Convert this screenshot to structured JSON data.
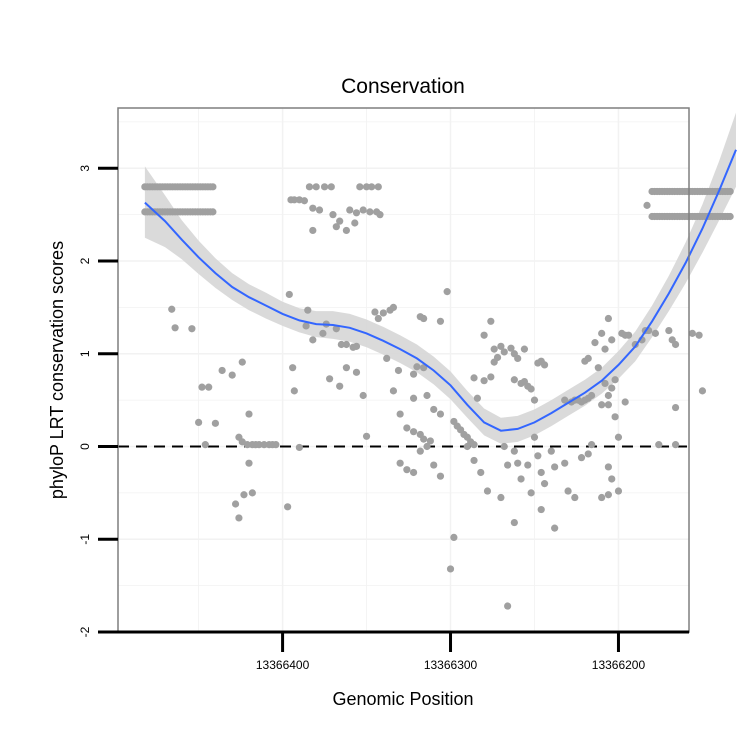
{
  "chart_data": {
    "type": "scatter",
    "title": "Conservation",
    "xlabel": "Genomic Position",
    "ylabel": "phyloP LRT conservation scores",
    "x_axis_reversed": true,
    "xlim": [
      13366158,
      13366498
    ],
    "ylim": [
      -2,
      3.65
    ],
    "x_ticks": [
      13366400,
      13366300,
      13366200
    ],
    "y_ticks": [
      -2,
      -1,
      0,
      1,
      2,
      3
    ],
    "reference_line_y": 0,
    "grid": true,
    "colors": {
      "points": "#a0a0a0",
      "smooth_line": "#3366ff",
      "confidence_band": "#d6d6d6",
      "panel_border": "#7f7f7f",
      "gridline": "#f2f2f2",
      "axis": "#000000"
    },
    "smooth": [
      {
        "x": 13366482,
        "y": 2.63,
        "lo": 2.25,
        "hi": 3.02
      },
      {
        "x": 13366470,
        "y": 2.43,
        "lo": 2.15,
        "hi": 2.71
      },
      {
        "x": 13366460,
        "y": 2.23,
        "lo": 2.02,
        "hi": 2.44
      },
      {
        "x": 13366450,
        "y": 2.04,
        "lo": 1.86,
        "hi": 2.22
      },
      {
        "x": 13366440,
        "y": 1.87,
        "lo": 1.71,
        "hi": 2.03
      },
      {
        "x": 13366430,
        "y": 1.72,
        "lo": 1.58,
        "hi": 1.87
      },
      {
        "x": 13366420,
        "y": 1.61,
        "lo": 1.47,
        "hi": 1.75
      },
      {
        "x": 13366410,
        "y": 1.52,
        "lo": 1.38,
        "hi": 1.66
      },
      {
        "x": 13366400,
        "y": 1.43,
        "lo": 1.3,
        "hi": 1.56
      },
      {
        "x": 13366390,
        "y": 1.36,
        "lo": 1.23,
        "hi": 1.49
      },
      {
        "x": 13366380,
        "y": 1.32,
        "lo": 1.18,
        "hi": 1.46
      },
      {
        "x": 13366370,
        "y": 1.31,
        "lo": 1.16,
        "hi": 1.46
      },
      {
        "x": 13366360,
        "y": 1.28,
        "lo": 1.13,
        "hi": 1.43
      },
      {
        "x": 13366350,
        "y": 1.22,
        "lo": 1.07,
        "hi": 1.37
      },
      {
        "x": 13366340,
        "y": 1.14,
        "lo": 0.99,
        "hi": 1.29
      },
      {
        "x": 13366330,
        "y": 1.05,
        "lo": 0.9,
        "hi": 1.2
      },
      {
        "x": 13366320,
        "y": 0.95,
        "lo": 0.8,
        "hi": 1.1
      },
      {
        "x": 13366310,
        "y": 0.82,
        "lo": 0.67,
        "hi": 0.97
      },
      {
        "x": 13366300,
        "y": 0.66,
        "lo": 0.51,
        "hi": 0.81
      },
      {
        "x": 13366290,
        "y": 0.45,
        "lo": 0.31,
        "hi": 0.6
      },
      {
        "x": 13366280,
        "y": 0.26,
        "lo": 0.12,
        "hi": 0.41
      },
      {
        "x": 13366270,
        "y": 0.17,
        "lo": 0.03,
        "hi": 0.31
      },
      {
        "x": 13366260,
        "y": 0.19,
        "lo": 0.05,
        "hi": 0.33
      },
      {
        "x": 13366250,
        "y": 0.26,
        "lo": 0.12,
        "hi": 0.4
      },
      {
        "x": 13366240,
        "y": 0.36,
        "lo": 0.22,
        "hi": 0.5
      },
      {
        "x": 13366230,
        "y": 0.47,
        "lo": 0.33,
        "hi": 0.61
      },
      {
        "x": 13366220,
        "y": 0.58,
        "lo": 0.44,
        "hi": 0.72
      },
      {
        "x": 13366210,
        "y": 0.71,
        "lo": 0.57,
        "hi": 0.85
      },
      {
        "x": 13366200,
        "y": 0.88,
        "lo": 0.73,
        "hi": 1.03
      },
      {
        "x": 13366190,
        "y": 1.08,
        "lo": 0.92,
        "hi": 1.24
      },
      {
        "x": 13366180,
        "y": 1.35,
        "lo": 1.18,
        "hi": 1.52
      },
      {
        "x": 13366170,
        "y": 1.65,
        "lo": 1.46,
        "hi": 1.84
      },
      {
        "x": 13366160,
        "y": 1.98,
        "lo": 1.76,
        "hi": 2.2
      },
      {
        "x": 13366150,
        "y": 2.35,
        "lo": 2.09,
        "hi": 2.61
      },
      {
        "x": 13366140,
        "y": 2.76,
        "lo": 2.44,
        "hi": 3.08
      },
      {
        "x": 13366130,
        "y": 3.2,
        "lo": 2.8,
        "hi": 3.6
      }
    ],
    "point_rows": [
      {
        "y": 2.8,
        "x_start": 13366482,
        "x_end": 13366441,
        "step": 1.5
      },
      {
        "y": 2.53,
        "x_start": 13366482,
        "x_end": 13366441,
        "step": 1.5
      },
      {
        "y": 2.75,
        "x_start": 13366180,
        "x_end": 13366133,
        "step": 1.5
      },
      {
        "y": 2.48,
        "x_start": 13366180,
        "x_end": 13366133,
        "step": 1.5
      }
    ],
    "points": [
      [
        13366395,
        2.66
      ],
      [
        13366393,
        2.66
      ],
      [
        13366390,
        2.66
      ],
      [
        13366387,
        2.65
      ],
      [
        13366384,
        2.8
      ],
      [
        13366380,
        2.8
      ],
      [
        13366375,
        2.8
      ],
      [
        13366371,
        2.8
      ],
      [
        13366354,
        2.8
      ],
      [
        13366350,
        2.8
      ],
      [
        13366347,
        2.8
      ],
      [
        13366343,
        2.8
      ],
      [
        13366382,
        2.57
      ],
      [
        13366378,
        2.55
      ],
      [
        13366370,
        2.5
      ],
      [
        13366360,
        2.55
      ],
      [
        13366356,
        2.52
      ],
      [
        13366352,
        2.55
      ],
      [
        13366348,
        2.53
      ],
      [
        13366344,
        2.53
      ],
      [
        13366342,
        2.5
      ],
      [
        13366382,
        2.33
      ],
      [
        13366368,
        2.37
      ],
      [
        13366366,
        2.43
      ],
      [
        13366362,
        2.33
      ],
      [
        13366357,
        2.41
      ],
      [
        13366183,
        2.6
      ],
      [
        13366466,
        1.48
      ],
      [
        13366464,
        1.28
      ],
      [
        13366454,
        1.27
      ],
      [
        13366448,
        0.64
      ],
      [
        13366444,
        0.64
      ],
      [
        13366436,
        0.82
      ],
      [
        13366430,
        0.77
      ],
      [
        13366424,
        0.91
      ],
      [
        13366420,
        0.35
      ],
      [
        13366450,
        0.26
      ],
      [
        13366440,
        0.25
      ],
      [
        13366446,
        0.02
      ],
      [
        13366426,
        0.1
      ],
      [
        13366424,
        0.05
      ],
      [
        13366421,
        0.02
      ],
      [
        13366418,
        0.02
      ],
      [
        13366416,
        0.02
      ],
      [
        13366414,
        0.02
      ],
      [
        13366411,
        0.02
      ],
      [
        13366408,
        0.02
      ],
      [
        13366406,
        0.02
      ],
      [
        13366404,
        0.02
      ],
      [
        13366428,
        -0.62
      ],
      [
        13366426,
        -0.77
      ],
      [
        13366423,
        -0.52
      ],
      [
        13366420,
        -0.18
      ],
      [
        13366418,
        -0.5
      ],
      [
        13366396,
        1.64
      ],
      [
        13366394,
        0.85
      ],
      [
        13366393,
        0.6
      ],
      [
        13366390,
        -0.01
      ],
      [
        13366397,
        -0.65
      ],
      [
        13366385,
        1.47
      ],
      [
        13366386,
        1.3
      ],
      [
        13366382,
        1.15
      ],
      [
        13366376,
        1.22
      ],
      [
        13366374,
        1.32
      ],
      [
        13366368,
        1.27
      ],
      [
        13366365,
        1.1
      ],
      [
        13366362,
        1.1
      ],
      [
        13366358,
        1.07
      ],
      [
        13366356,
        1.08
      ],
      [
        13366372,
        0.73
      ],
      [
        13366366,
        0.65
      ],
      [
        13366362,
        0.85
      ],
      [
        13366356,
        0.8
      ],
      [
        13366352,
        0.55
      ],
      [
        13366350,
        0.11
      ],
      [
        13366345,
        1.45
      ],
      [
        13366343,
        1.38
      ],
      [
        13366340,
        1.44
      ],
      [
        13366336,
        1.47
      ],
      [
        13366334,
        1.5
      ],
      [
        13366338,
        0.95
      ],
      [
        13366331,
        0.82
      ],
      [
        13366322,
        0.78
      ],
      [
        13366320,
        0.86
      ],
      [
        13366316,
        0.85
      ],
      [
        13366334,
        0.6
      ],
      [
        13366322,
        0.52
      ],
      [
        13366314,
        0.55
      ],
      [
        13366310,
        0.4
      ],
      [
        13366306,
        0.35
      ],
      [
        13366330,
        0.35
      ],
      [
        13366326,
        0.2
      ],
      [
        13366322,
        0.16
      ],
      [
        13366318,
        0.13
      ],
      [
        13366316,
        0.08
      ],
      [
        13366312,
        0.06
      ],
      [
        13366318,
        1.4
      ],
      [
        13366316,
        1.38
      ],
      [
        13366306,
        1.35
      ],
      [
        13366302,
        1.67
      ],
      [
        13366330,
        -0.18
      ],
      [
        13366326,
        -0.25
      ],
      [
        13366322,
        -0.28
      ],
      [
        13366318,
        -0.05
      ],
      [
        13366314,
        0.0
      ],
      [
        13366310,
        -0.2
      ],
      [
        13366306,
        -0.32
      ],
      [
        13366298,
        -0.98
      ],
      [
        13366300,
        -1.32
      ],
      [
        13366298,
        0.27
      ],
      [
        13366296,
        0.22
      ],
      [
        13366294,
        0.18
      ],
      [
        13366292,
        0.13
      ],
      [
        13366290,
        0.1
      ],
      [
        13366288,
        0.05
      ],
      [
        13366286,
        0.02
      ],
      [
        13366290,
        0.0
      ],
      [
        13366286,
        -0.15
      ],
      [
        13366282,
        -0.28
      ],
      [
        13366278,
        -0.48
      ],
      [
        13366286,
        0.74
      ],
      [
        13366280,
        0.71
      ],
      [
        13366276,
        0.75
      ],
      [
        13366284,
        0.52
      ],
      [
        13366274,
        0.91
      ],
      [
        13366272,
        0.96
      ],
      [
        13366280,
        1.2
      ],
      [
        13366276,
        1.35
      ],
      [
        13366274,
        1.05
      ],
      [
        13366270,
        1.08
      ],
      [
        13366268,
        1.02
      ],
      [
        13366264,
        1.06
      ],
      [
        13366262,
        1.0
      ],
      [
        13366260,
        0.95
      ],
      [
        13366256,
        1.05
      ],
      [
        13366262,
        0.72
      ],
      [
        13366258,
        0.68
      ],
      [
        13366256,
        0.7
      ],
      [
        13366254,
        0.65
      ],
      [
        13366252,
        0.62
      ],
      [
        13366268,
        0.0
      ],
      [
        13366266,
        -0.2
      ],
      [
        13366262,
        -0.05
      ],
      [
        13366260,
        -0.18
      ],
      [
        13366258,
        -0.35
      ],
      [
        13366254,
        -0.2
      ],
      [
        13366270,
        -0.55
      ],
      [
        13366262,
        -0.82
      ],
      [
        13366266,
        -1.72
      ],
      [
        13366250,
        0.5
      ],
      [
        13366248,
        0.9
      ],
      [
        13366246,
        0.92
      ],
      [
        13366244,
        0.88
      ],
      [
        13366250,
        0.1
      ],
      [
        13366248,
        -0.1
      ],
      [
        13366246,
        -0.28
      ],
      [
        13366244,
        -0.4
      ],
      [
        13366240,
        -0.05
      ],
      [
        13366238,
        -0.22
      ],
      [
        13366252,
        -0.5
      ],
      [
        13366246,
        -0.68
      ],
      [
        13366238,
        -0.88
      ],
      [
        13366232,
        0.5
      ],
      [
        13366228,
        0.48
      ],
      [
        13366226,
        0.5
      ],
      [
        13366224,
        0.5
      ],
      [
        13366222,
        0.48
      ],
      [
        13366220,
        0.5
      ],
      [
        13366218,
        0.52
      ],
      [
        13366216,
        0.55
      ],
      [
        13366232,
        -0.18
      ],
      [
        13366230,
        -0.48
      ],
      [
        13366226,
        -0.55
      ],
      [
        13366222,
        -0.12
      ],
      [
        13366218,
        -0.08
      ],
      [
        13366216,
        0.02
      ],
      [
        13366220,
        0.92
      ],
      [
        13366218,
        0.95
      ],
      [
        13366214,
        1.12
      ],
      [
        13366210,
        1.22
      ],
      [
        13366208,
        1.05
      ],
      [
        13366206,
        1.38
      ],
      [
        13366204,
        1.15
      ],
      [
        13366212,
        0.85
      ],
      [
        13366208,
        0.68
      ],
      [
        13366206,
        0.55
      ],
      [
        13366204,
        0.63
      ],
      [
        13366202,
        0.72
      ],
      [
        13366210,
        0.45
      ],
      [
        13366206,
        0.45
      ],
      [
        13366202,
        0.32
      ],
      [
        13366210,
        -0.55
      ],
      [
        13366206,
        -0.52
      ],
      [
        13366200,
        0.1
      ],
      [
        13366196,
        0.48
      ],
      [
        13366196,
        1.2
      ],
      [
        13366206,
        -0.22
      ],
      [
        13366204,
        -0.35
      ],
      [
        13366200,
        -0.48
      ],
      [
        13366198,
        1.22
      ],
      [
        13366194,
        1.2
      ],
      [
        13366190,
        1.1
      ],
      [
        13366186,
        1.15
      ],
      [
        13366184,
        1.25
      ],
      [
        13366182,
        1.25
      ],
      [
        13366178,
        1.22
      ],
      [
        13366170,
        1.25
      ],
      [
        13366168,
        1.15
      ],
      [
        13366166,
        1.1
      ],
      [
        13366176,
        0.02
      ],
      [
        13366166,
        0.02
      ],
      [
        13366166,
        0.42
      ],
      [
        13366156,
        1.22
      ],
      [
        13366152,
        1.2
      ],
      [
        13366150,
        0.6
      ]
    ]
  }
}
